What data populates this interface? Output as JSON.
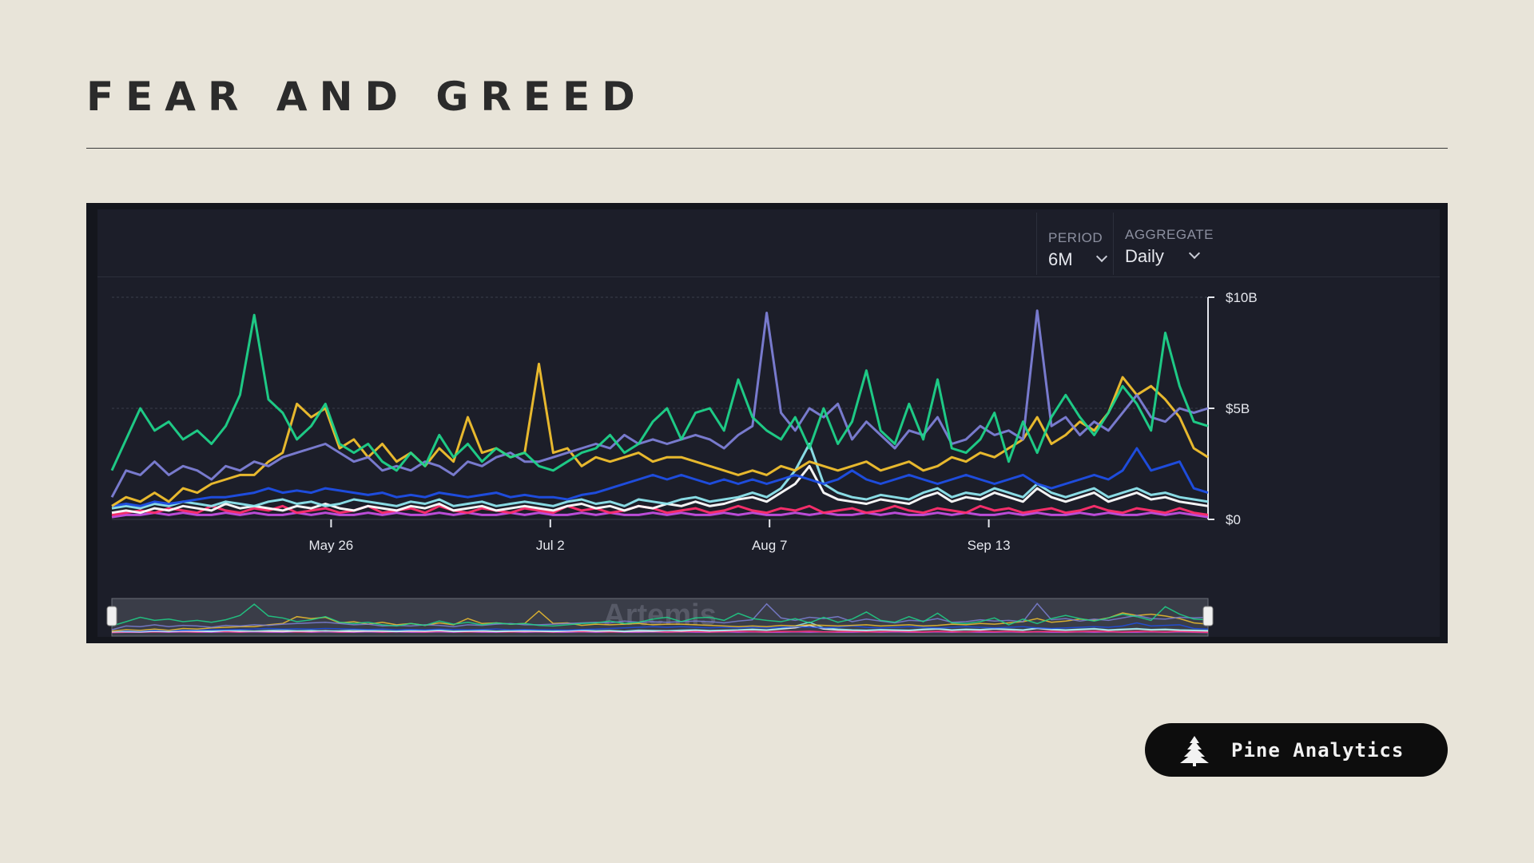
{
  "slide": {
    "title": "FEAR AND GREED"
  },
  "controls": {
    "period_label": "PERIOD",
    "period_value": "6M",
    "aggregate_label": "AGGREGATE",
    "aggregate_value": "Daily"
  },
  "watermark": "Artemis",
  "brand": {
    "name": "Pine Analytics",
    "logo_icon": "pine-tree-icon"
  },
  "chart_data": {
    "type": "line",
    "x_ticks": [
      "May 26",
      "Jul 2",
      "Aug 7",
      "Sep 13"
    ],
    "y_ticks": [
      "$0",
      "$5B",
      "$10B"
    ],
    "ylim": [
      0,
      10
    ],
    "y_unit": "$B",
    "grid": true,
    "legend": "none",
    "x_start": "Apr 20",
    "x_end": "Oct 30",
    "series": [
      {
        "color": "#1fd38a",
        "values": [
          2.2,
          3.6,
          5.0,
          4.0,
          4.4,
          3.6,
          4.0,
          3.4,
          4.2,
          5.6,
          9.2,
          5.4,
          4.8,
          3.6,
          4.2,
          5.2,
          3.4,
          3.0,
          3.4,
          2.6,
          2.2,
          3.0,
          2.4,
          3.8,
          2.8,
          3.4,
          2.6,
          3.2,
          2.8,
          3.0,
          2.4,
          2.2,
          2.6,
          3.0,
          3.2,
          3.8,
          3.0,
          3.4,
          4.4,
          5.0,
          3.6,
          4.8,
          5.0,
          4.0,
          6.3,
          4.6,
          4.0,
          3.6,
          4.6,
          3.2,
          5.0,
          3.4,
          4.4,
          6.7,
          4.0,
          3.4,
          5.2,
          3.6,
          6.3,
          3.2,
          3.0,
          3.6,
          4.8,
          2.6,
          4.4,
          3.0,
          4.6,
          5.6,
          4.6,
          3.8,
          4.8,
          6.0,
          5.2,
          4.0,
          8.4,
          6.0,
          4.4,
          4.2
        ]
      },
      {
        "color": "#7d80d6",
        "values": [
          1.0,
          2.2,
          2.0,
          2.6,
          2.0,
          2.4,
          2.2,
          1.8,
          2.4,
          2.2,
          2.6,
          2.4,
          2.8,
          3.0,
          3.2,
          3.4,
          3.0,
          2.6,
          2.8,
          2.2,
          2.4,
          2.2,
          2.6,
          2.4,
          2.0,
          2.6,
          2.4,
          2.8,
          3.0,
          2.6,
          2.6,
          2.8,
          3.0,
          3.2,
          3.4,
          3.2,
          3.8,
          3.4,
          3.6,
          3.4,
          3.6,
          3.8,
          3.6,
          3.2,
          3.8,
          4.2,
          9.3,
          4.8,
          4.0,
          5.0,
          4.6,
          5.2,
          3.6,
          4.4,
          3.8,
          3.2,
          4.0,
          3.8,
          4.6,
          3.4,
          3.6,
          4.2,
          3.8,
          4.0,
          3.6,
          9.4,
          4.2,
          4.6,
          3.8,
          4.4,
          4.0,
          4.8,
          5.6,
          4.6,
          4.4,
          5.0,
          4.8,
          5.0
        ]
      },
      {
        "color": "#f2c12e",
        "values": [
          0.6,
          1.0,
          0.8,
          1.2,
          0.8,
          1.4,
          1.2,
          1.6,
          1.8,
          2.0,
          2.0,
          2.6,
          3.0,
          5.2,
          4.6,
          5.0,
          3.2,
          3.6,
          2.8,
          3.4,
          2.6,
          3.0,
          2.4,
          3.2,
          2.6,
          4.6,
          3.0,
          3.2,
          2.8,
          3.0,
          7.0,
          3.0,
          3.2,
          2.4,
          2.8,
          2.6,
          2.8,
          3.0,
          2.6,
          2.8,
          2.8,
          2.6,
          2.4,
          2.2,
          2.0,
          2.2,
          2.0,
          2.4,
          2.2,
          2.6,
          2.4,
          2.2,
          2.4,
          2.6,
          2.2,
          2.4,
          2.6,
          2.2,
          2.4,
          2.8,
          2.6,
          3.0,
          2.8,
          3.2,
          3.6,
          4.6,
          3.4,
          3.8,
          4.4,
          4.0,
          4.8,
          6.4,
          5.6,
          6.0,
          5.4,
          4.6,
          3.2,
          2.8
        ]
      },
      {
        "color": "#1f4fe6",
        "values": [
          0.6,
          0.7,
          0.6,
          0.8,
          0.7,
          0.8,
          0.9,
          1.0,
          1.0,
          1.1,
          1.2,
          1.4,
          1.2,
          1.3,
          1.2,
          1.4,
          1.3,
          1.2,
          1.1,
          1.2,
          1.0,
          1.1,
          1.0,
          1.2,
          1.1,
          1.0,
          1.1,
          1.2,
          1.0,
          1.1,
          1.0,
          1.0,
          0.9,
          1.1,
          1.2,
          1.4,
          1.6,
          1.8,
          2.0,
          1.8,
          2.0,
          1.8,
          1.6,
          1.8,
          1.6,
          1.8,
          1.6,
          1.8,
          2.0,
          1.8,
          1.6,
          1.8,
          2.2,
          1.8,
          1.6,
          1.8,
          2.0,
          1.8,
          1.6,
          1.8,
          2.0,
          1.8,
          1.6,
          1.8,
          2.0,
          1.6,
          1.4,
          1.6,
          1.8,
          2.0,
          1.8,
          2.2,
          3.2,
          2.2,
          2.4,
          2.6,
          1.4,
          1.2
        ]
      },
      {
        "color": "#8fe6ee",
        "values": [
          0.5,
          0.6,
          0.5,
          0.7,
          0.6,
          0.8,
          0.7,
          0.6,
          0.8,
          0.7,
          0.6,
          0.8,
          0.9,
          0.7,
          0.8,
          0.6,
          0.7,
          0.9,
          0.8,
          0.7,
          0.6,
          0.8,
          0.7,
          0.9,
          0.6,
          0.7,
          0.8,
          0.6,
          0.7,
          0.8,
          0.7,
          0.6,
          0.8,
          0.9,
          0.7,
          0.8,
          0.6,
          0.9,
          0.8,
          0.7,
          0.9,
          1.0,
          0.8,
          0.9,
          1.0,
          1.2,
          1.0,
          1.4,
          2.2,
          3.4,
          1.6,
          1.2,
          1.0,
          0.9,
          1.1,
          1.0,
          0.9,
          1.2,
          1.4,
          1.0,
          1.2,
          1.1,
          1.4,
          1.2,
          1.0,
          1.6,
          1.2,
          1.0,
          1.2,
          1.4,
          1.0,
          1.2,
          1.4,
          1.1,
          1.2,
          1.0,
          0.9,
          0.8
        ]
      },
      {
        "color": "#ffffff",
        "values": [
          0.3,
          0.4,
          0.3,
          0.5,
          0.4,
          0.6,
          0.5,
          0.4,
          0.7,
          0.5,
          0.6,
          0.5,
          0.4,
          0.6,
          0.5,
          0.7,
          0.5,
          0.4,
          0.6,
          0.5,
          0.4,
          0.6,
          0.5,
          0.7,
          0.4,
          0.5,
          0.6,
          0.4,
          0.5,
          0.6,
          0.5,
          0.4,
          0.6,
          0.7,
          0.5,
          0.6,
          0.4,
          0.6,
          0.5,
          0.7,
          0.6,
          0.8,
          0.6,
          0.7,
          0.9,
          1.0,
          0.8,
          1.2,
          1.6,
          2.4,
          1.2,
          0.9,
          0.8,
          0.7,
          0.9,
          0.8,
          0.7,
          1.0,
          1.2,
          0.8,
          1.0,
          0.9,
          1.2,
          1.0,
          0.8,
          1.4,
          1.0,
          0.8,
          1.0,
          1.2,
          0.8,
          1.0,
          1.2,
          0.9,
          1.0,
          0.8,
          0.7,
          0.6
        ]
      },
      {
        "color": "#ff2e6e",
        "values": [
          0.2,
          0.3,
          0.4,
          0.3,
          0.5,
          0.4,
          0.3,
          0.6,
          0.4,
          0.3,
          0.5,
          0.4,
          0.6,
          0.3,
          0.4,
          0.5,
          0.3,
          0.4,
          0.6,
          0.3,
          0.4,
          0.5,
          0.3,
          0.6,
          0.4,
          0.3,
          0.5,
          0.4,
          0.3,
          0.5,
          0.4,
          0.3,
          0.6,
          0.4,
          0.5,
          0.3,
          0.4,
          0.6,
          0.5,
          0.3,
          0.4,
          0.5,
          0.3,
          0.4,
          0.6,
          0.4,
          0.3,
          0.5,
          0.4,
          0.6,
          0.3,
          0.4,
          0.5,
          0.3,
          0.4,
          0.6,
          0.4,
          0.3,
          0.5,
          0.4,
          0.3,
          0.6,
          0.4,
          0.5,
          0.3,
          0.4,
          0.5,
          0.3,
          0.4,
          0.6,
          0.4,
          0.3,
          0.5,
          0.4,
          0.3,
          0.5,
          0.3,
          0.2
        ]
      },
      {
        "color": "#c44fe0",
        "values": [
          0.1,
          0.2,
          0.2,
          0.3,
          0.2,
          0.3,
          0.2,
          0.2,
          0.3,
          0.2,
          0.3,
          0.2,
          0.2,
          0.3,
          0.2,
          0.3,
          0.2,
          0.2,
          0.3,
          0.2,
          0.3,
          0.2,
          0.2,
          0.3,
          0.2,
          0.3,
          0.2,
          0.2,
          0.3,
          0.2,
          0.3,
          0.2,
          0.2,
          0.3,
          0.2,
          0.3,
          0.2,
          0.2,
          0.3,
          0.2,
          0.3,
          0.2,
          0.2,
          0.3,
          0.2,
          0.3,
          0.2,
          0.2,
          0.3,
          0.2,
          0.3,
          0.2,
          0.2,
          0.3,
          0.2,
          0.3,
          0.2,
          0.2,
          0.3,
          0.2,
          0.3,
          0.2,
          0.2,
          0.3,
          0.2,
          0.3,
          0.2,
          0.2,
          0.3,
          0.2,
          0.3,
          0.2,
          0.2,
          0.3,
          0.2,
          0.3,
          0.2,
          0.1
        ]
      }
    ]
  }
}
